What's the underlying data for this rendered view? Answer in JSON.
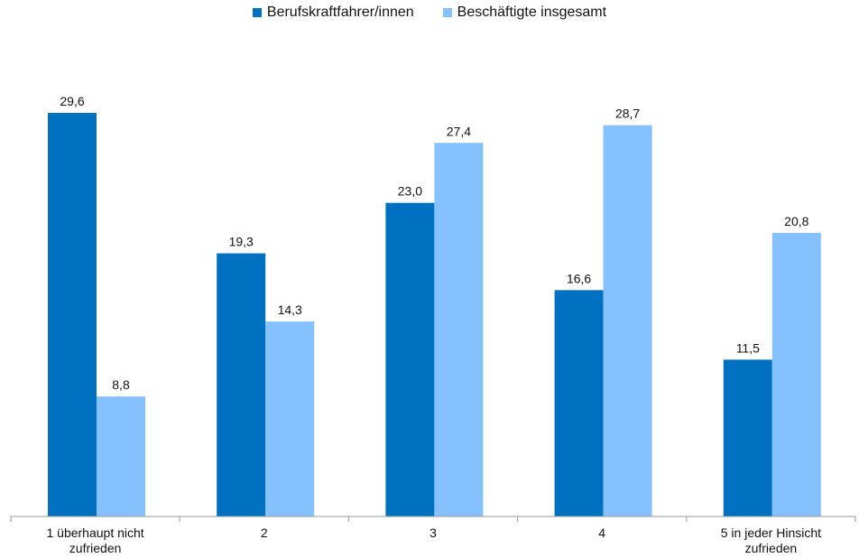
{
  "chart_data": {
    "type": "bar",
    "categories": [
      [
        "1 überhaupt nicht",
        "zufrieden"
      ],
      [
        "2"
      ],
      [
        "3"
      ],
      [
        "4"
      ],
      [
        "5 in jeder Hinsicht",
        "zufrieden"
      ]
    ],
    "series": [
      {
        "name": "Berufskraftfahrer/innen",
        "color": "#0070C0",
        "values": [
          29.6,
          19.3,
          23.0,
          16.6,
          11.5
        ],
        "labels": [
          "29,6",
          "19,3",
          "23,0",
          "16,6",
          "11,5"
        ]
      },
      {
        "name": "Beschäftigte insgesamt",
        "color": "#85C1FF",
        "values": [
          8.8,
          14.3,
          27.4,
          28.7,
          20.8
        ],
        "labels": [
          "8,8",
          "14,3",
          "27,4",
          "28,7",
          "20,8"
        ]
      }
    ],
    "ylim": [
      0,
      30
    ],
    "legend_position": "top-center",
    "grid": false
  }
}
